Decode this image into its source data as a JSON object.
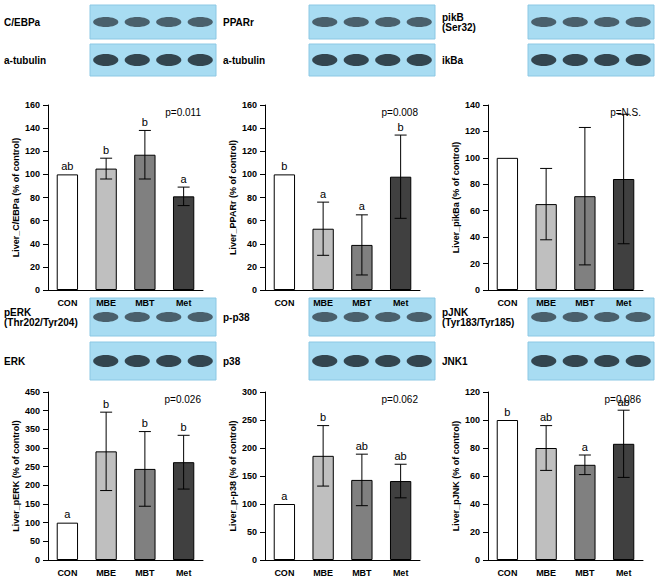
{
  "chart_data": [
    {
      "type": "bar",
      "blots": [
        "C/EBPa",
        "a-tubulin"
      ],
      "ylabel": "Liver_C/EBPa (% of control)",
      "categories": [
        "CON",
        "MBE",
        "MBT",
        "Met"
      ],
      "values": [
        100,
        105,
        117,
        81
      ],
      "errors": [
        null,
        9,
        21,
        8
      ],
      "letters": [
        "ab",
        "b",
        "b",
        "a"
      ],
      "p_value": "p=0.011",
      "colors": [
        "#ffffff",
        "#bfbfbf",
        "#808080",
        "#404040"
      ],
      "ylim": [
        0,
        160
      ],
      "yticks": [
        0,
        20,
        40,
        60,
        80,
        100,
        120,
        140,
        160
      ],
      "grid": false
    },
    {
      "type": "bar",
      "blots": [
        "PPARr",
        "a-tubulin"
      ],
      "ylabel": "Liver_PPARr (% of control)",
      "categories": [
        "CON",
        "MBE",
        "MBT",
        "Met"
      ],
      "values": [
        100,
        53,
        39,
        98
      ],
      "errors": [
        null,
        23,
        26,
        36
      ],
      "letters": [
        "b",
        "a",
        "a",
        "b"
      ],
      "p_value": "p=0.008",
      "colors": [
        "#ffffff",
        "#bfbfbf",
        "#808080",
        "#404040"
      ],
      "ylim": [
        0,
        160
      ],
      "yticks": [
        0,
        20,
        40,
        60,
        80,
        100,
        120,
        140,
        160
      ],
      "grid": false
    },
    {
      "type": "bar",
      "blots": [
        "pikB\n(Ser32)",
        "ikBa"
      ],
      "ylabel": "Liver_pikBa (% of control)",
      "categories": [
        "CON",
        "MBE",
        "MBT",
        "Met"
      ],
      "values": [
        100,
        65,
        71,
        84
      ],
      "errors": [
        null,
        27,
        52,
        49
      ],
      "p_value": "p=N.S.",
      "colors": [
        "#ffffff",
        "#bfbfbf",
        "#808080",
        "#404040"
      ],
      "ylim": [
        0,
        140
      ],
      "yticks": [
        0,
        20,
        40,
        60,
        80,
        100,
        120,
        140
      ],
      "grid": false
    },
    {
      "type": "bar",
      "blots": [
        "pERK\n(Thr202/Tyr204)",
        "ERK"
      ],
      "ylabel": "Liver_pERK (% of control)",
      "categories": [
        "CON",
        "MBE",
        "MBT",
        "Met"
      ],
      "values": [
        100,
        291,
        244,
        262
      ],
      "errors": [
        null,
        105,
        100,
        72
      ],
      "letters": [
        "a",
        "b",
        "b",
        "b"
      ],
      "p_value": "p=0.026",
      "colors": [
        "#ffffff",
        "#bfbfbf",
        "#808080",
        "#404040"
      ],
      "ylim": [
        0,
        450
      ],
      "yticks": [
        0,
        50,
        100,
        150,
        200,
        250,
        300,
        350,
        400,
        450
      ],
      "grid": false
    },
    {
      "type": "bar",
      "blots": [
        "p-p38",
        "p38"
      ],
      "ylabel": "Liver_p-p38 (% of control)",
      "categories": [
        "CON",
        "MBE",
        "MBT",
        "Met"
      ],
      "values": [
        100,
        186,
        143,
        141
      ],
      "errors": [
        null,
        54,
        46,
        30
      ],
      "letters": [
        "a",
        "b",
        "ab",
        "ab"
      ],
      "p_value": "p=0.062",
      "colors": [
        "#ffffff",
        "#bfbfbf",
        "#808080",
        "#404040"
      ],
      "ylim": [
        0,
        300
      ],
      "yticks": [
        0,
        50,
        100,
        150,
        200,
        250,
        300
      ],
      "grid": false
    },
    {
      "type": "bar",
      "blots": [
        "pJNK\n(Tyr183/Tyr185)",
        "JNK1"
      ],
      "ylabel": "Liver_pJNK (% of control)",
      "categories": [
        "CON",
        "MBE",
        "MBT",
        "Met"
      ],
      "values": [
        100,
        80,
        68,
        83
      ],
      "errors": [
        null,
        16,
        7,
        24
      ],
      "letters": [
        "b",
        "ab",
        "a",
        "ab"
      ],
      "p_value": "p=0.086",
      "colors": [
        "#ffffff",
        "#bfbfbf",
        "#808080",
        "#404040"
      ],
      "ylim": [
        0,
        120
      ],
      "yticks": [
        0,
        20,
        40,
        60,
        80,
        100,
        120
      ],
      "grid": false
    }
  ]
}
